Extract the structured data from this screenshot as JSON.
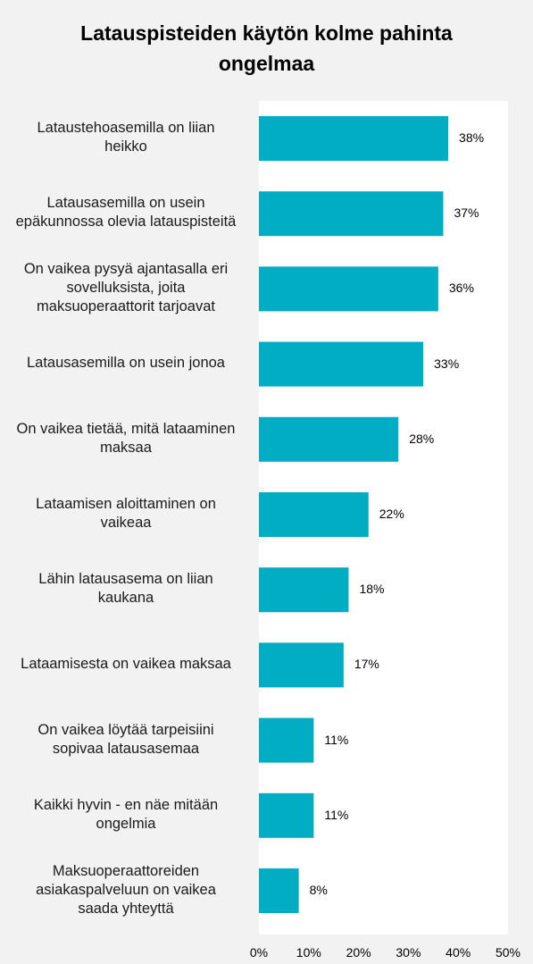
{
  "chart_data": {
    "type": "bar",
    "orientation": "horizontal",
    "title": "Latauspisteiden käytön kolme pahinta\nongelmaa",
    "categories": [
      "Lataustehoasemilla on liian\nheikko",
      "Latausasemilla on usein\nepäkunnossa olevia latauspisteitä",
      "On vaikea pysyä ajantasalla eri\nsovelluksista,  joita\nmaksuoperaattorit tarjoavat",
      "Latausasemilla on usein jonoa",
      "On vaikea tietää, mitä lataaminen\nmaksaa",
      "Lataamisen aloittaminen on\nvaikeaa",
      "Lähin latausasema on liian\nkaukana",
      "Lataamisesta on vaikea maksaa",
      "On vaikea löytää tarpeisiini\nsopivaa latausasemaa",
      "Kaikki hyvin - en näe mitään\nongelmia",
      "Maksuoperaattoreiden\nasiakaspalveluun on vaikea\nsaada yhteyttä"
    ],
    "values": [
      38,
      37,
      36,
      33,
      28,
      22,
      18,
      17,
      11,
      11,
      8
    ],
    "value_labels": [
      "38%",
      "37%",
      "36%",
      "33%",
      "28%",
      "22%",
      "18%",
      "17%",
      "11%",
      "11%",
      "8%"
    ],
    "x_ticks": [
      "0%",
      "10%",
      "20%",
      "30%",
      "40%",
      "50%"
    ],
    "xlim": [
      0,
      50
    ],
    "bar_color": "#00adc3",
    "grid": false,
    "legend": "none"
  }
}
